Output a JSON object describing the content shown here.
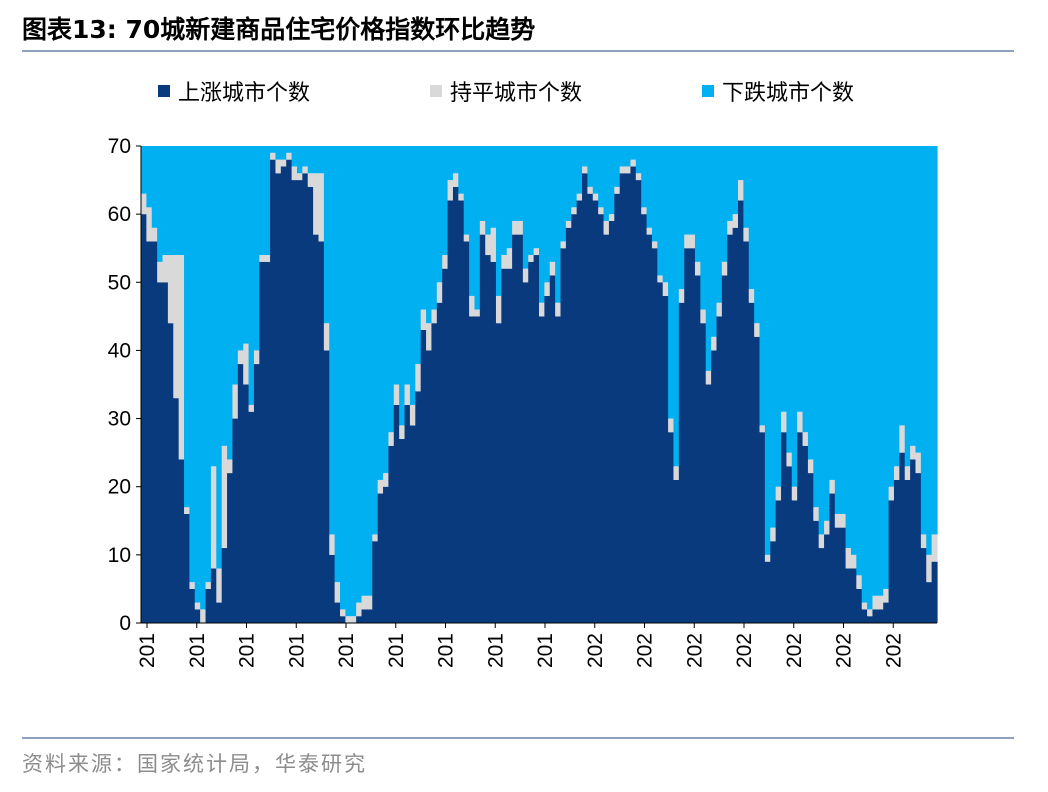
{
  "figure": {
    "title": "图表13:  70城新建商品住宅价格指数环比趋势",
    "source": "资料来源：国家统计局，华泰研究"
  },
  "colors": {
    "up": "#0a3a7e",
    "flat": "#d9d9d9",
    "down": "#00b0f0"
  },
  "legend": [
    {
      "label": "上涨城市个数",
      "color": "#0a3a7e"
    },
    {
      "label": "持平城市个数",
      "color": "#d9d9d9"
    },
    {
      "label": "下跌城市个数",
      "color": "#00b0f0"
    }
  ],
  "chart_data": {
    "type": "bar",
    "stacked": true,
    "ylim": [
      0,
      70
    ],
    "yticks": [
      0,
      10,
      20,
      30,
      40,
      50,
      60,
      70
    ],
    "xtick_labels": [
      "201",
      "201",
      "201",
      "201",
      "201",
      "201",
      "201",
      "201",
      "201",
      "202",
      "202",
      "202",
      "202",
      "202",
      "202",
      "202"
    ],
    "legend_position": "top",
    "grid": false,
    "series": [
      {
        "name": "上涨城市个数",
        "values": [
          60,
          56,
          56,
          50,
          50,
          44,
          33,
          24,
          16,
          5,
          2,
          0,
          5,
          8,
          3,
          11,
          22,
          30,
          38,
          35,
          31,
          38,
          53,
          53,
          68,
          66,
          67,
          68,
          65,
          65,
          66,
          64,
          57,
          56,
          40,
          10,
          3,
          1,
          0,
          0,
          1,
          2,
          2,
          12,
          19,
          20,
          26,
          32,
          27,
          32,
          29,
          34,
          43,
          40,
          44,
          47,
          52,
          62,
          64,
          62,
          56,
          45,
          45,
          57,
          54,
          53,
          44,
          52,
          52,
          57,
          57,
          50,
          53,
          54,
          45,
          48,
          51,
          45,
          55,
          58,
          60,
          62,
          66,
          63,
          62,
          60,
          57,
          59,
          63,
          66,
          66,
          67,
          65,
          60,
          57,
          55,
          50,
          48,
          28,
          21,
          47,
          55,
          55,
          51,
          44,
          35,
          40,
          45,
          51,
          57,
          58,
          62,
          56,
          47,
          42,
          28,
          9,
          12,
          18,
          28,
          23,
          18,
          28,
          26,
          22,
          15,
          11,
          13,
          19,
          14,
          14,
          8,
          8,
          5,
          2,
          1,
          2,
          2,
          3,
          18,
          21,
          25,
          21,
          24,
          22,
          11,
          6,
          9
        ]
      },
      {
        "name": "持平城市个数",
        "values": [
          3,
          5,
          2,
          3,
          4,
          10,
          21,
          30,
          1,
          1,
          1,
          2,
          1,
          15,
          5,
          15,
          2,
          5,
          2,
          6,
          1,
          2,
          1,
          1,
          1,
          2,
          1,
          1,
          2,
          1,
          1,
          2,
          9,
          10,
          4,
          3,
          3,
          1,
          1,
          1,
          2,
          2,
          2,
          1,
          2,
          2,
          2,
          3,
          2,
          3,
          3,
          4,
          3,
          4,
          2,
          3,
          2,
          3,
          2,
          1,
          1,
          3,
          1,
          2,
          3,
          5,
          4,
          2,
          3,
          2,
          2,
          2,
          1,
          1,
          2,
          2,
          2,
          2,
          1,
          1,
          1,
          1,
          1,
          1,
          1,
          1,
          2,
          1,
          1,
          1,
          1,
          1,
          1,
          1,
          1,
          1,
          1,
          2,
          2,
          2,
          2,
          2,
          2,
          2,
          2,
          2,
          2,
          2,
          2,
          2,
          2,
          3,
          2,
          2,
          2,
          1,
          1,
          2,
          2,
          3,
          2,
          2,
          3,
          2,
          2,
          2,
          2,
          2,
          2,
          2,
          2,
          3,
          2,
          2,
          1,
          1,
          2,
          2,
          2,
          2,
          2,
          4,
          2,
          2,
          3,
          2,
          4,
          4
        ]
      },
      {
        "name": "下跌城市个数",
        "values": [
          7,
          9,
          12,
          17,
          16,
          16,
          16,
          16,
          53,
          64,
          67,
          68,
          64,
          47,
          62,
          44,
          46,
          35,
          30,
          29,
          38,
          30,
          16,
          16,
          1,
          2,
          2,
          1,
          3,
          4,
          3,
          4,
          4,
          4,
          26,
          57,
          64,
          68,
          69,
          69,
          67,
          66,
          66,
          57,
          49,
          48,
          42,
          35,
          41,
          35,
          38,
          32,
          24,
          26,
          24,
          20,
          16,
          5,
          4,
          7,
          13,
          22,
          24,
          11,
          13,
          12,
          22,
          16,
          15,
          11,
          11,
          18,
          16,
          15,
          23,
          20,
          17,
          23,
          14,
          11,
          9,
          7,
          3,
          6,
          7,
          9,
          11,
          10,
          6,
          3,
          3,
          2,
          4,
          9,
          12,
          14,
          19,
          20,
          40,
          47,
          21,
          13,
          13,
          17,
          24,
          33,
          28,
          23,
          17,
          11,
          10,
          5,
          12,
          21,
          26,
          41,
          60,
          56,
          50,
          39,
          45,
          50,
          39,
          42,
          46,
          53,
          57,
          55,
          49,
          54,
          54,
          59,
          60,
          63,
          67,
          68,
          66,
          66,
          65,
          50,
          47,
          41,
          47,
          44,
          45,
          57,
          60,
          57
        ]
      }
    ]
  }
}
